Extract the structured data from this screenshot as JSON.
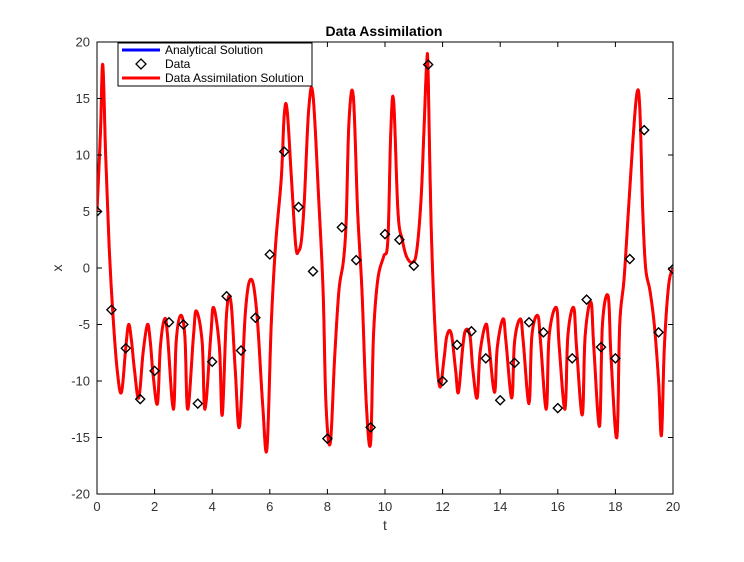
{
  "chart_data": {
    "type": "line",
    "title": "Data Assimilation",
    "xlabel": "t",
    "ylabel": "x",
    "xlim": [
      0,
      20
    ],
    "ylim": [
      -20,
      20
    ],
    "x_ticks": [
      0,
      2,
      4,
      6,
      8,
      10,
      12,
      14,
      16,
      18,
      20
    ],
    "y_ticks": [
      -20,
      -15,
      -10,
      -5,
      0,
      5,
      10,
      15,
      20
    ],
    "x_tick_labels": [
      "0",
      "2",
      "4",
      "6",
      "8",
      "10",
      "12",
      "14",
      "16",
      "18",
      "20"
    ],
    "y_tick_labels": [
      "-20",
      "-15",
      "-10",
      "-5",
      "0",
      "5",
      "10",
      "15",
      "20"
    ],
    "grid": false,
    "legend_position": "top-left",
    "series": [
      {
        "name": "Analytical Solution",
        "style": "line",
        "color": "#0000ff",
        "x": [
          0,
          0.12,
          0.2,
          0.3,
          0.42,
          0.55,
          0.7,
          0.85,
          1.0,
          1.1,
          1.2,
          1.3,
          1.45,
          1.6,
          1.75,
          1.85,
          1.95,
          2.1,
          2.2,
          2.35,
          2.45,
          2.65,
          2.75,
          2.9,
          3.05,
          3.15,
          3.35,
          3.45,
          3.65,
          3.75,
          3.95,
          4.05,
          4.25,
          4.35,
          4.5,
          4.65,
          4.8,
          4.95,
          5.15,
          5.35,
          5.55,
          5.75,
          5.9,
          6.05,
          6.2,
          6.4,
          6.5,
          6.6,
          6.75,
          6.9,
          7.0,
          7.1,
          7.2,
          7.35,
          7.5,
          7.7,
          7.85,
          7.95,
          8.1,
          8.25,
          8.4,
          8.55,
          8.65,
          8.75,
          8.9,
          9.05,
          9.2,
          9.35,
          9.5,
          9.6,
          9.75,
          9.95,
          10.1,
          10.2,
          10.3,
          10.45,
          10.6,
          10.75,
          10.95,
          11.1,
          11.25,
          11.35,
          11.45,
          11.5,
          11.6,
          11.75,
          11.9,
          12.05,
          12.15,
          12.3,
          12.45,
          12.55,
          12.7,
          12.8,
          12.95,
          13.05,
          13.2,
          13.3,
          13.5,
          13.6,
          13.8,
          13.9,
          14.1,
          14.2,
          14.4,
          14.5,
          14.7,
          14.8,
          15.0,
          15.1,
          15.3,
          15.4,
          15.6,
          15.7,
          15.95,
          16.05,
          16.25,
          16.35,
          16.55,
          16.65,
          16.85,
          16.95,
          17.15,
          17.25,
          17.45,
          17.55,
          17.75,
          17.85,
          18.05,
          18.15,
          18.3,
          18.45,
          18.6,
          18.75,
          18.85,
          18.95,
          19.05,
          19.2,
          19.35,
          19.5,
          19.6,
          19.7,
          19.85,
          20.0
        ],
        "y": [
          5,
          12,
          18,
          10,
          2,
          -4,
          -9,
          -11,
          -7,
          -5,
          -6.5,
          -9,
          -11.5,
          -7.5,
          -5,
          -6.5,
          -9.5,
          -12,
          -7,
          -4.5,
          -6,
          -12.5,
          -6.5,
          -4.2,
          -6,
          -12.5,
          -6,
          -3.8,
          -6.5,
          -12.5,
          -6,
          -3.5,
          -7,
          -13,
          -4,
          -3,
          -9,
          -14,
          -4,
          -1,
          -4,
          -12,
          -16,
          -5,
          2,
          8,
          13.5,
          14,
          8,
          2,
          1.5,
          2.5,
          6,
          14,
          15.3,
          6,
          -2,
          -12,
          -15.5,
          -8,
          -2,
          0.5,
          4,
          13,
          15.2,
          5,
          -2,
          -12,
          -15.5,
          -6,
          -1,
          1,
          2.5,
          12,
          14.8,
          5,
          2.5,
          1,
          0.5,
          1.5,
          6,
          12,
          18.3,
          17,
          4,
          -6,
          -10.5,
          -8,
          -6,
          -5.8,
          -9,
          -11,
          -7,
          -5.5,
          -6,
          -9,
          -11.5,
          -7.5,
          -5,
          -6.5,
          -11,
          -7,
          -4.5,
          -6.5,
          -11.5,
          -6.5,
          -4.5,
          -6.5,
          -12,
          -6,
          -4.2,
          -6.5,
          -12.5,
          -6,
          -3.5,
          -7,
          -12.5,
          -6,
          -3.5,
          -7,
          -13,
          -6,
          -3,
          -7,
          -14,
          -5,
          -2.5,
          -8,
          -15,
          -5,
          -1,
          5,
          11,
          15.5,
          14,
          5,
          0,
          -2,
          -5,
          -10,
          -14.8,
          -7,
          -1.5,
          0
        ]
      },
      {
        "name": "Data",
        "style": "markers",
        "marker": "diamond",
        "color": "#000000",
        "x": [
          0,
          0.5,
          1.0,
          1.5,
          2.0,
          2.5,
          3.0,
          3.5,
          4.0,
          4.5,
          5.0,
          5.5,
          6.0,
          6.5,
          7.0,
          7.5,
          8.0,
          8.5,
          9.0,
          9.5,
          10.0,
          10.5,
          11.0,
          11.5,
          12.0,
          12.5,
          13.0,
          13.5,
          14.0,
          14.5,
          15.0,
          15.5,
          16.0,
          16.5,
          17.0,
          17.5,
          18.0,
          18.5,
          19.0,
          19.5,
          20.0
        ],
        "y": [
          5.0,
          -3.7,
          -7.1,
          -11.6,
          -9.1,
          -4.8,
          -5.0,
          -12.0,
          -8.3,
          -2.5,
          -7.3,
          -4.4,
          1.2,
          10.3,
          5.4,
          -0.3,
          -15.1,
          3.6,
          0.7,
          -14.1,
          3.0,
          2.5,
          0.2,
          18.0,
          -10.0,
          -6.8,
          -5.6,
          -8.0,
          -11.7,
          -8.4,
          -4.8,
          -5.7,
          -12.4,
          -8.0,
          -2.8,
          -7.0,
          -8.0,
          0.8,
          12.2,
          -5.7,
          -0.1
        ]
      },
      {
        "name": "Data Assimilation Solution",
        "style": "line",
        "color": "#ff0000",
        "x": [
          0,
          0.12,
          0.2,
          0.3,
          0.42,
          0.55,
          0.7,
          0.85,
          1.0,
          1.1,
          1.2,
          1.3,
          1.45,
          1.6,
          1.75,
          1.85,
          1.95,
          2.1,
          2.2,
          2.35,
          2.45,
          2.65,
          2.75,
          2.9,
          3.05,
          3.15,
          3.35,
          3.45,
          3.65,
          3.75,
          3.95,
          4.05,
          4.25,
          4.35,
          4.5,
          4.65,
          4.8,
          4.95,
          5.15,
          5.35,
          5.55,
          5.75,
          5.9,
          6.05,
          6.2,
          6.4,
          6.5,
          6.6,
          6.75,
          6.9,
          7.0,
          7.1,
          7.2,
          7.35,
          7.5,
          7.7,
          7.85,
          7.95,
          8.1,
          8.25,
          8.4,
          8.55,
          8.65,
          8.75,
          8.9,
          9.05,
          9.2,
          9.35,
          9.5,
          9.6,
          9.75,
          9.95,
          10.1,
          10.2,
          10.3,
          10.45,
          10.6,
          10.75,
          10.95,
          11.1,
          11.25,
          11.35,
          11.45,
          11.5,
          11.6,
          11.75,
          11.9,
          12.05,
          12.15,
          12.3,
          12.45,
          12.55,
          12.7,
          12.8,
          12.95,
          13.05,
          13.2,
          13.3,
          13.5,
          13.6,
          13.8,
          13.9,
          14.1,
          14.2,
          14.4,
          14.5,
          14.7,
          14.8,
          15.0,
          15.1,
          15.3,
          15.4,
          15.6,
          15.7,
          15.95,
          16.05,
          16.25,
          16.35,
          16.55,
          16.65,
          16.85,
          16.95,
          17.15,
          17.25,
          17.45,
          17.55,
          17.75,
          17.85,
          18.05,
          18.15,
          18.3,
          18.45,
          18.6,
          18.75,
          18.85,
          18.95,
          19.05,
          19.2,
          19.35,
          19.5,
          19.6,
          19.7,
          19.85,
          20.0
        ],
        "y": [
          5,
          12,
          18,
          10,
          2,
          -4,
          -9,
          -11,
          -7,
          -5,
          -6.5,
          -9,
          -11.5,
          -7.5,
          -5,
          -6.5,
          -9.5,
          -12,
          -7,
          -4.5,
          -6,
          -12.5,
          -6.5,
          -4.2,
          -6,
          -12.5,
          -6,
          -3.8,
          -6.5,
          -12.5,
          -6,
          -3.5,
          -7,
          -13,
          -4,
          -3,
          -9,
          -14,
          -4,
          -1,
          -4,
          -12,
          -16,
          -5,
          2,
          8,
          13.5,
          14,
          8,
          2,
          1.5,
          2.5,
          6,
          14,
          15.3,
          6,
          -2,
          -12,
          -15.5,
          -8,
          -2,
          0.5,
          4,
          13,
          15.2,
          5,
          -2,
          -12,
          -15.5,
          -6,
          -1,
          1,
          2.5,
          12,
          14.8,
          5,
          2.5,
          1,
          0.5,
          1.5,
          6,
          12,
          18.3,
          17,
          4,
          -6,
          -10.5,
          -8,
          -6,
          -5.8,
          -9,
          -11,
          -7,
          -5.5,
          -6,
          -9,
          -11.5,
          -7.5,
          -5,
          -6.5,
          -11,
          -7,
          -4.5,
          -6.5,
          -11.5,
          -6.5,
          -4.5,
          -6.5,
          -12,
          -6,
          -4.2,
          -6.5,
          -12.5,
          -6,
          -3.5,
          -7,
          -12.5,
          -6,
          -3.5,
          -7,
          -13,
          -6,
          -3,
          -7,
          -14,
          -5,
          -2.5,
          -8,
          -15,
          -5,
          -1,
          5,
          11,
          15.5,
          14,
          5,
          0,
          -2,
          -5,
          -10,
          -14.8,
          -7,
          -1.5,
          0
        ]
      }
    ]
  }
}
